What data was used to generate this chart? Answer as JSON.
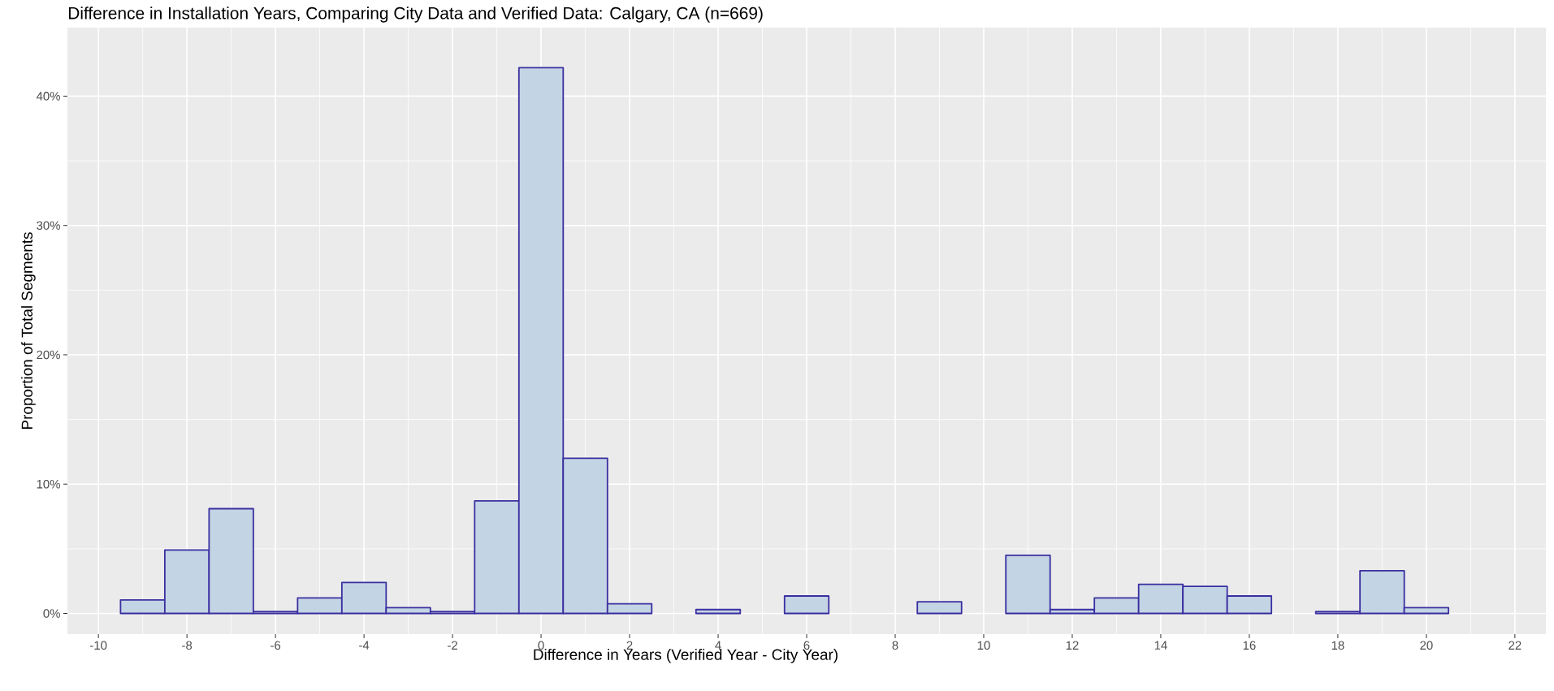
{
  "chart_data": {
    "type": "histogram",
    "title": "Difference in Installation Years, Comparing City Data and Verified Data: Calgary, CA (n=669)",
    "xlabel": "Difference in Years (Verified Year - City Year)",
    "ylabel": "Proportion of Total Segments",
    "bins": [
      -9.5,
      -8.5,
      -7.5,
      -6.5,
      -5.5,
      -4.5,
      -3.5,
      -2.5,
      -1.5,
      -0.5,
      0.5,
      1.5,
      2.5,
      3.5,
      4.5,
      5.5,
      6.5,
      7.5,
      8.5,
      9.5,
      10.5,
      11.5,
      12.5,
      13.5,
      14.5,
      15.5,
      16.5,
      17.5,
      18.5,
      19.5,
      20.5
    ],
    "values": [
      1.05,
      4.9,
      8.1,
      0.15,
      1.2,
      2.4,
      0.45,
      0.15,
      8.7,
      42.2,
      12.0,
      0.75,
      0,
      0.3,
      0,
      1.35,
      0,
      0,
      0.9,
      0,
      4.5,
      0.3,
      1.2,
      2.25,
      2.1,
      1.35,
      0,
      0.15,
      3.3,
      0.45
    ],
    "color": "#c3d4e4",
    "xlim": [
      -10.7,
      22.7
    ],
    "ylim": [
      -1.6,
      45.3
    ],
    "xticks": [
      -10,
      -8,
      -6,
      -4,
      -2,
      0,
      2,
      4,
      6,
      8,
      10,
      12,
      14,
      16,
      18,
      20,
      22
    ],
    "yticks": [
      {
        "value": 0,
        "label": "0%"
      },
      {
        "value": 10,
        "label": "10%"
      },
      {
        "value": 20,
        "label": "20%"
      },
      {
        "value": 30,
        "label": "30%"
      },
      {
        "value": 40,
        "label": "40%"
      }
    ],
    "grid": true
  }
}
